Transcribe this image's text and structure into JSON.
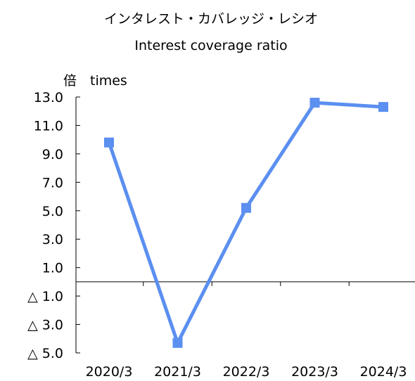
{
  "chart_data": {
    "type": "line",
    "title": "インタレスト・カバレッジ・レシオ",
    "subtitle": "Interest coverage ratio",
    "unit_label": "倍　times",
    "categories": [
      "2020/3",
      "2021/3",
      "2022/3",
      "2023/3",
      "2024/3"
    ],
    "series": [
      {
        "values": [
          9.8,
          -4.3,
          5.2,
          12.6,
          12.3
        ],
        "color": "#5b8ff0"
      }
    ],
    "y_ticks": [
      13.0,
      11.0,
      9.0,
      7.0,
      5.0,
      3.0,
      1.0,
      -1.0,
      -3.0,
      -5.0
    ],
    "y_tick_labels": [
      "13.0",
      "11.0",
      "9.0",
      "7.0",
      "5.0",
      "3.0",
      "1.0",
      "△ 1.0",
      "△ 3.0",
      "△ 5.0"
    ],
    "ylim": [
      -5.0,
      13.0
    ],
    "grid": false,
    "marker": "square"
  }
}
